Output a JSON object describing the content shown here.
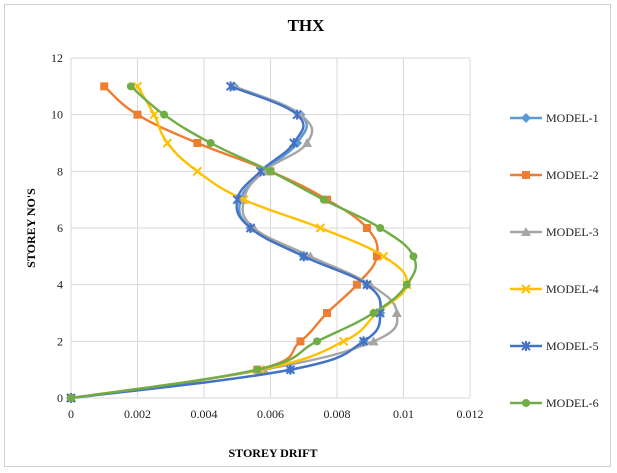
{
  "chart_data": {
    "type": "line",
    "title": "THX",
    "xlabel": "STOREY DRIFT",
    "ylabel": "STOREY NO'S",
    "xlim": [
      0,
      0.012
    ],
    "ylim": [
      0,
      12
    ],
    "x_ticks": [
      "0",
      "0.002",
      "0.004",
      "0.006",
      "0.008",
      "0.01",
      "0.012"
    ],
    "y_ticks": [
      "0",
      "2",
      "4",
      "6",
      "8",
      "10",
      "12"
    ],
    "grid": true,
    "legend_position": "right",
    "series": [
      {
        "name": "MODEL-1",
        "color": "#5b9bd5",
        "marker": "diamond",
        "points": [
          [
            0,
            0
          ],
          [
            0.0066,
            1
          ],
          [
            0.0088,
            2
          ],
          [
            0.0093,
            3
          ],
          [
            0.0089,
            4
          ],
          [
            0.007,
            5
          ],
          [
            0.0054,
            6
          ],
          [
            0.0051,
            7
          ],
          [
            0.0058,
            8
          ],
          [
            0.0068,
            9
          ],
          [
            0.0069,
            10
          ],
          [
            0.0049,
            11
          ]
        ]
      },
      {
        "name": "MODEL-2",
        "color": "#ed7d31",
        "marker": "square",
        "points": [
          [
            0,
            0
          ],
          [
            0.0056,
            1
          ],
          [
            0.0069,
            2
          ],
          [
            0.0077,
            3
          ],
          [
            0.0086,
            4
          ],
          [
            0.0092,
            5
          ],
          [
            0.0089,
            6
          ],
          [
            0.0077,
            7
          ],
          [
            0.006,
            8
          ],
          [
            0.0038,
            9
          ],
          [
            0.002,
            10
          ],
          [
            0.001,
            11
          ]
        ]
      },
      {
        "name": "MODEL-3",
        "color": "#a5a5a5",
        "marker": "triangle",
        "points": [
          [
            0,
            0
          ],
          [
            0.0058,
            1
          ],
          [
            0.0091,
            2
          ],
          [
            0.0098,
            3
          ],
          [
            0.009,
            4
          ],
          [
            0.0072,
            5
          ],
          [
            0.0055,
            6
          ],
          [
            0.0052,
            7
          ],
          [
            0.0058,
            8
          ],
          [
            0.0071,
            9
          ],
          [
            0.0069,
            10
          ],
          [
            0.0049,
            11
          ]
        ]
      },
      {
        "name": "MODEL-4",
        "color": "#ffc000",
        "marker": "x",
        "points": [
          [
            0,
            0
          ],
          [
            0.0057,
            1
          ],
          [
            0.0082,
            2
          ],
          [
            0.0092,
            3
          ],
          [
            0.0101,
            4
          ],
          [
            0.0094,
            5
          ],
          [
            0.0075,
            6
          ],
          [
            0.0052,
            7
          ],
          [
            0.0038,
            8
          ],
          [
            0.0029,
            9
          ],
          [
            0.0025,
            10
          ],
          [
            0.002,
            11
          ]
        ]
      },
      {
        "name": "MODEL-5",
        "color": "#4472c4",
        "marker": "star",
        "points": [
          [
            0,
            0
          ],
          [
            0.0066,
            1
          ],
          [
            0.0088,
            2
          ],
          [
            0.0093,
            3
          ],
          [
            0.0089,
            4
          ],
          [
            0.007,
            5
          ],
          [
            0.0054,
            6
          ],
          [
            0.005,
            7
          ],
          [
            0.0057,
            8
          ],
          [
            0.0067,
            9
          ],
          [
            0.0068,
            10
          ],
          [
            0.0048,
            11
          ]
        ]
      },
      {
        "name": "MODEL-6",
        "color": "#70ad47",
        "marker": "circle",
        "points": [
          [
            0,
            0
          ],
          [
            0.0056,
            1
          ],
          [
            0.0074,
            2
          ],
          [
            0.0091,
            3
          ],
          [
            0.0101,
            4
          ],
          [
            0.0103,
            5
          ],
          [
            0.0093,
            6
          ],
          [
            0.0076,
            7
          ],
          [
            0.006,
            8
          ],
          [
            0.0042,
            9
          ],
          [
            0.0028,
            10
          ],
          [
            0.0018,
            11
          ]
        ]
      }
    ]
  }
}
